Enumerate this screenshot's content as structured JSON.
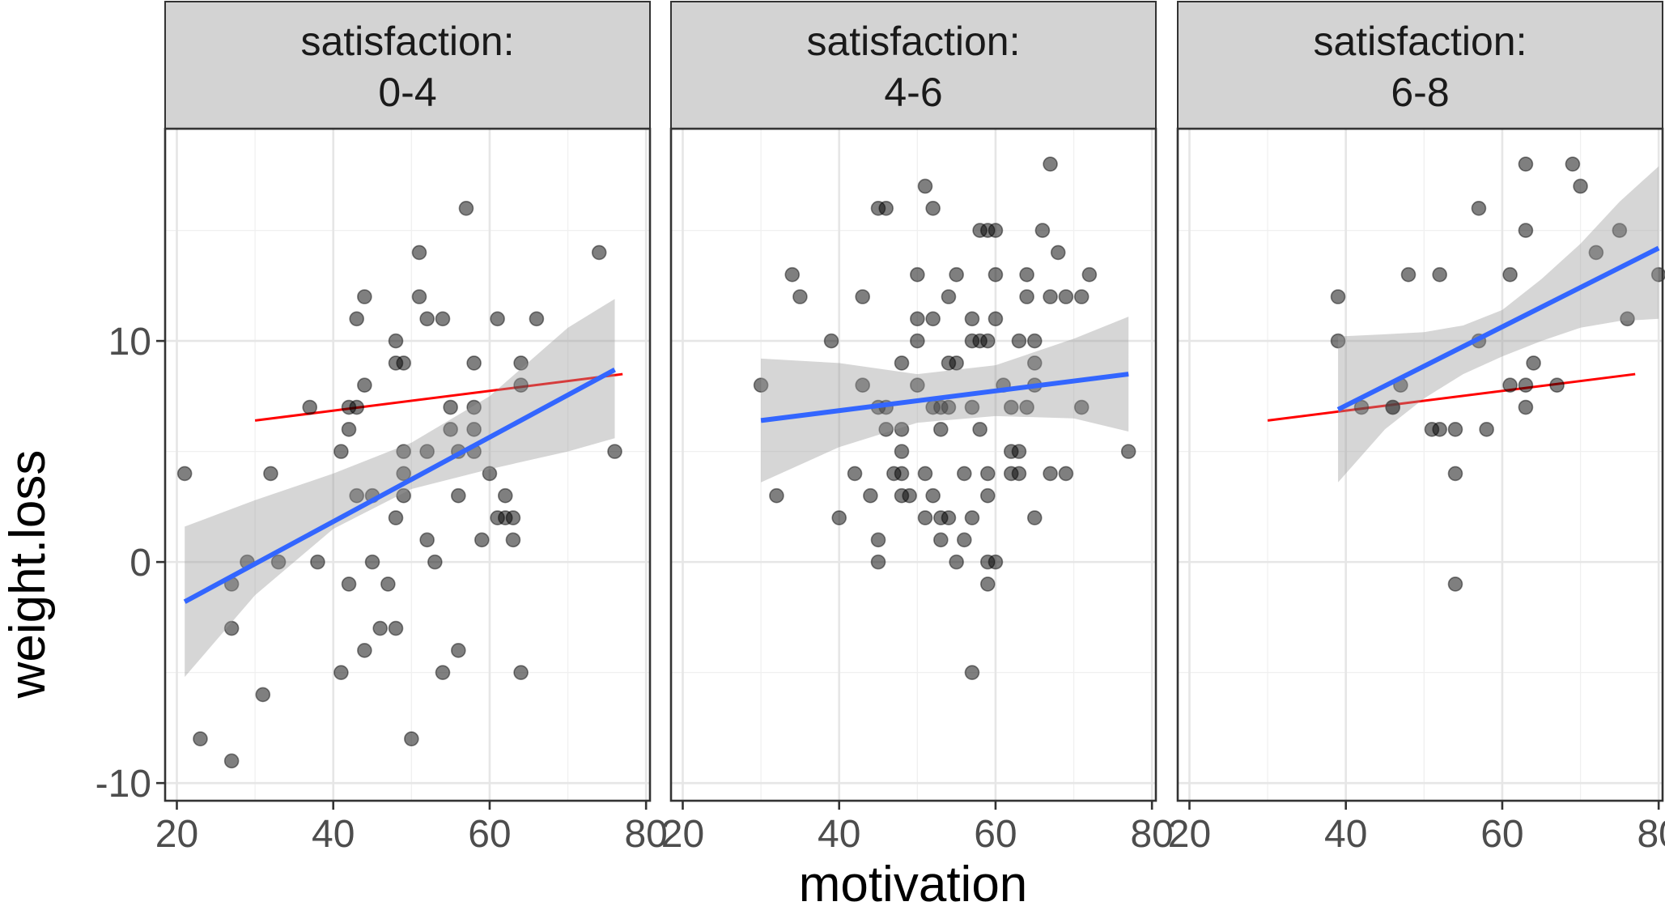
{
  "chart_data": {
    "type": "scatter",
    "title": "",
    "xlabel": "motivation",
    "ylabel": "weight.loss",
    "xlim": [
      18.5,
      80.5
    ],
    "ylim": [
      -10.8,
      19.6
    ],
    "x_breaks": [
      20,
      40,
      60,
      80
    ],
    "x_tick_labels": [
      "20",
      "40",
      "60",
      "80"
    ],
    "y_breaks": [
      -10,
      0,
      10
    ],
    "y_tick_labels": [
      "-10",
      "0",
      "10"
    ],
    "grid": true,
    "legend": "none",
    "colors": {
      "points": "#000000",
      "fit": "#3366ff",
      "reference": "#ff0000",
      "band": "#999999",
      "strip": "#d3d3d3"
    },
    "reference_line": {
      "x": [
        30,
        77
      ],
      "y": [
        6.4,
        8.5
      ]
    },
    "panels": [
      {
        "strip": [
          "satisfaction:",
          "0-4"
        ],
        "points": [
          [
            21,
            4
          ],
          [
            23,
            -8
          ],
          [
            27,
            -9
          ],
          [
            27,
            -3
          ],
          [
            27,
            -1
          ],
          [
            29,
            0
          ],
          [
            31,
            -6
          ],
          [
            32,
            4
          ],
          [
            33,
            0
          ],
          [
            37,
            7
          ],
          [
            38,
            0
          ],
          [
            41,
            5
          ],
          [
            41,
            -5
          ],
          [
            42,
            7
          ],
          [
            42,
            6
          ],
          [
            42,
            -1
          ],
          [
            43,
            3
          ],
          [
            43,
            7
          ],
          [
            43,
            11
          ],
          [
            44,
            12
          ],
          [
            44,
            8
          ],
          [
            44,
            -4
          ],
          [
            45,
            3
          ],
          [
            45,
            0
          ],
          [
            46,
            -3
          ],
          [
            47,
            -1
          ],
          [
            48,
            -3
          ],
          [
            48,
            2
          ],
          [
            48,
            9
          ],
          [
            48,
            10
          ],
          [
            49,
            3
          ],
          [
            49,
            4
          ],
          [
            49,
            5
          ],
          [
            49,
            9
          ],
          [
            50,
            -8
          ],
          [
            51,
            14
          ],
          [
            51,
            12
          ],
          [
            52,
            11
          ],
          [
            52,
            5
          ],
          [
            52,
            1
          ],
          [
            53,
            0
          ],
          [
            54,
            -5
          ],
          [
            54,
            11
          ],
          [
            55,
            7
          ],
          [
            55,
            6
          ],
          [
            56,
            3
          ],
          [
            56,
            5
          ],
          [
            56,
            -4
          ],
          [
            57,
            16
          ],
          [
            58,
            9
          ],
          [
            58,
            7
          ],
          [
            58,
            6
          ],
          [
            58,
            5
          ],
          [
            59,
            1
          ],
          [
            60,
            4
          ],
          [
            61,
            11
          ],
          [
            61,
            2
          ],
          [
            62,
            3
          ],
          [
            62,
            2
          ],
          [
            63,
            2
          ],
          [
            63,
            1
          ],
          [
            64,
            9
          ],
          [
            64,
            8
          ],
          [
            64,
            -5
          ],
          [
            66,
            11
          ],
          [
            74,
            14
          ],
          [
            76,
            5
          ]
        ],
        "fit": {
          "x": [
            21,
            76
          ],
          "y": [
            -1.8,
            8.7
          ]
        },
        "band": {
          "x": [
            21,
            30,
            40,
            50,
            60,
            70,
            76
          ],
          "lower": [
            -5.2,
            -1.5,
            1.5,
            3.3,
            4.2,
            5.0,
            5.6
          ],
          "upper": [
            1.6,
            2.8,
            4.0,
            5.4,
            7.5,
            10.6,
            11.9
          ]
        }
      },
      {
        "strip": [
          "satisfaction:",
          "4-6"
        ],
        "points": [
          [
            30,
            8
          ],
          [
            32,
            3
          ],
          [
            34,
            13
          ],
          [
            35,
            12
          ],
          [
            39,
            10
          ],
          [
            40,
            2
          ],
          [
            42,
            4
          ],
          [
            43,
            8
          ],
          [
            43,
            12
          ],
          [
            44,
            3
          ],
          [
            45,
            7
          ],
          [
            45,
            16
          ],
          [
            45,
            1
          ],
          [
            45,
            0
          ],
          [
            46,
            16
          ],
          [
            46,
            7
          ],
          [
            46,
            6
          ],
          [
            47,
            4
          ],
          [
            48,
            9
          ],
          [
            48,
            6
          ],
          [
            48,
            5
          ],
          [
            48,
            4
          ],
          [
            48,
            3
          ],
          [
            49,
            3
          ],
          [
            50,
            13
          ],
          [
            50,
            11
          ],
          [
            50,
            10
          ],
          [
            50,
            8
          ],
          [
            51,
            17
          ],
          [
            51,
            4
          ],
          [
            51,
            2
          ],
          [
            52,
            16
          ],
          [
            52,
            11
          ],
          [
            52,
            7
          ],
          [
            52,
            3
          ],
          [
            53,
            7
          ],
          [
            53,
            6
          ],
          [
            53,
            2
          ],
          [
            53,
            1
          ],
          [
            54,
            12
          ],
          [
            54,
            9
          ],
          [
            54,
            7
          ],
          [
            54,
            2
          ],
          [
            55,
            13
          ],
          [
            55,
            9
          ],
          [
            55,
            0
          ],
          [
            56,
            4
          ],
          [
            56,
            1
          ],
          [
            57,
            11
          ],
          [
            57,
            10
          ],
          [
            57,
            7
          ],
          [
            57,
            2
          ],
          [
            57,
            -5
          ],
          [
            58,
            15
          ],
          [
            58,
            10
          ],
          [
            58,
            6
          ],
          [
            59,
            15
          ],
          [
            59,
            10
          ],
          [
            59,
            4
          ],
          [
            59,
            3
          ],
          [
            59,
            0
          ],
          [
            59,
            -1
          ],
          [
            60,
            15
          ],
          [
            60,
            11
          ],
          [
            60,
            13
          ],
          [
            60,
            0
          ],
          [
            61,
            8
          ],
          [
            62,
            5
          ],
          [
            62,
            4
          ],
          [
            62,
            7
          ],
          [
            63,
            10
          ],
          [
            63,
            5
          ],
          [
            63,
            4
          ],
          [
            64,
            13
          ],
          [
            64,
            12
          ],
          [
            64,
            7
          ],
          [
            65,
            9
          ],
          [
            65,
            8
          ],
          [
            65,
            10
          ],
          [
            65,
            2
          ],
          [
            66,
            15
          ],
          [
            67,
            18
          ],
          [
            67,
            12
          ],
          [
            67,
            4
          ],
          [
            68,
            14
          ],
          [
            69,
            12
          ],
          [
            69,
            4
          ],
          [
            71,
            12
          ],
          [
            71,
            7
          ],
          [
            72,
            13
          ],
          [
            77,
            5
          ]
        ],
        "fit": {
          "x": [
            30,
            77
          ],
          "y": [
            6.4,
            8.5
          ]
        },
        "band": {
          "x": [
            30,
            40,
            50,
            60,
            70,
            77
          ],
          "lower": [
            3.6,
            5.2,
            6.3,
            6.6,
            6.5,
            5.9
          ],
          "upper": [
            9.2,
            9.0,
            8.5,
            8.9,
            10.1,
            11.1
          ]
        }
      },
      {
        "strip": [
          "satisfaction:",
          "6-8"
        ],
        "points": [
          [
            39,
            12
          ],
          [
            39,
            10
          ],
          [
            42,
            7
          ],
          [
            46,
            7
          ],
          [
            46,
            7
          ],
          [
            47,
            8
          ],
          [
            48,
            13
          ],
          [
            51,
            6
          ],
          [
            52,
            6
          ],
          [
            52,
            13
          ],
          [
            54,
            6
          ],
          [
            54,
            4
          ],
          [
            54,
            -1
          ],
          [
            57,
            16
          ],
          [
            57,
            10
          ],
          [
            58,
            6
          ],
          [
            61,
            13
          ],
          [
            61,
            8
          ],
          [
            63,
            18
          ],
          [
            63,
            15
          ],
          [
            63,
            7
          ],
          [
            63,
            8
          ],
          [
            64,
            9
          ],
          [
            67,
            8
          ],
          [
            69,
            18
          ],
          [
            70,
            17
          ],
          [
            72,
            14
          ],
          [
            75,
            15
          ],
          [
            76,
            11
          ],
          [
            80,
            13
          ]
        ],
        "fit": {
          "x": [
            39,
            80
          ],
          "y": [
            6.9,
            14.2
          ]
        },
        "band": {
          "x": [
            39,
            45,
            50,
            55,
            60,
            65,
            70,
            75,
            80
          ],
          "lower": [
            3.6,
            6.0,
            7.4,
            8.5,
            9.3,
            10.0,
            10.6,
            10.9,
            11.0
          ],
          "upper": [
            10.2,
            10.3,
            10.4,
            10.7,
            11.4,
            12.8,
            14.4,
            16.3,
            17.9
          ]
        }
      }
    ]
  }
}
